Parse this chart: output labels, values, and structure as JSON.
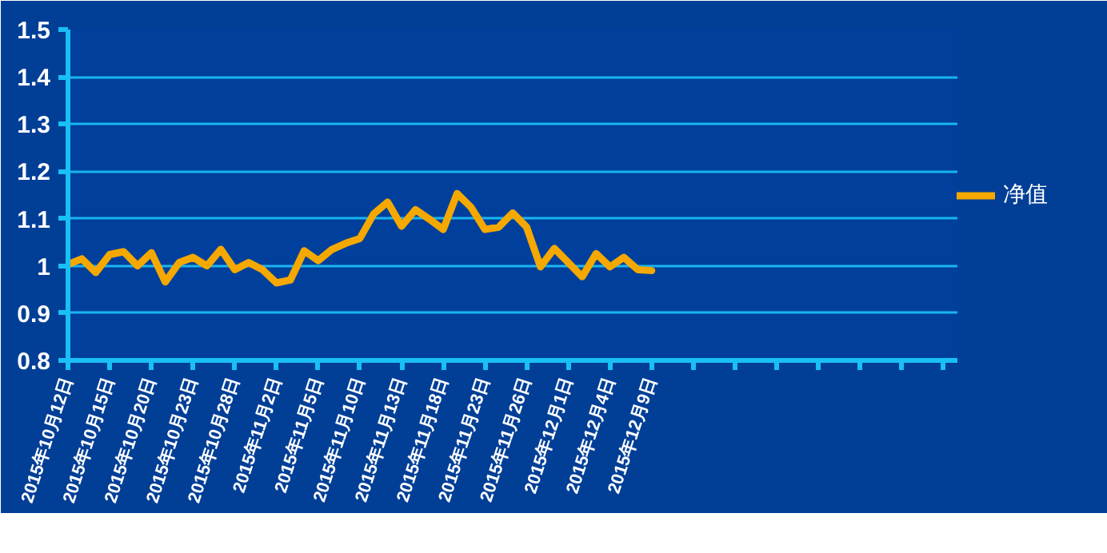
{
  "chart_data": {
    "type": "line",
    "categories": [
      "2015年10月12日",
      null,
      null,
      "2015年10月15日",
      null,
      null,
      "2015年10月20日",
      null,
      null,
      "2015年10月23日",
      null,
      null,
      "2015年10月28日",
      null,
      null,
      "2015年11月2日",
      null,
      null,
      "2015年11月5日",
      null,
      null,
      "2015年11月10日",
      null,
      null,
      "2015年11月13日",
      null,
      null,
      "2015年11月18日",
      null,
      null,
      "2015年11月23日",
      null,
      null,
      "2015年11月26日",
      null,
      null,
      "2015年12月1日",
      null,
      null,
      "2015年12月4日",
      null,
      null,
      "2015年12月9日",
      null,
      null,
      null,
      null,
      null,
      null,
      null,
      null,
      null,
      null,
      null,
      null,
      null,
      null,
      null,
      null,
      null,
      null,
      null,
      null,
      null,
      null
    ],
    "series": [
      {
        "name": "净值",
        "color": "#f5a800",
        "values": [
          1.003,
          1.015,
          0.986,
          1.024,
          1.03,
          1.0,
          1.028,
          0.966,
          1.007,
          1.018,
          1.0,
          1.035,
          0.992,
          1.007,
          0.992,
          0.964,
          0.97,
          1.032,
          1.011,
          1.035,
          1.048,
          1.058,
          1.11,
          1.135,
          1.084,
          1.119,
          1.099,
          1.077,
          1.153,
          1.124,
          1.077,
          1.082,
          1.112,
          1.082,
          0.998,
          1.037,
          1.007,
          0.977,
          1.026,
          0.998,
          1.018,
          0.992,
          0.99,
          null,
          null,
          null,
          null,
          null,
          null,
          null,
          null,
          null,
          null,
          null,
          null,
          null,
          null,
          null,
          null,
          null,
          null,
          null,
          null,
          null,
          null
        ]
      }
    ],
    "ylim": [
      0.8,
      1.5
    ],
    "yticks": [
      0.8,
      0.9,
      1,
      1.1,
      1.2,
      1.3,
      1.4,
      1.5
    ],
    "grid": "y",
    "legend": "right",
    "marker": "none",
    "line_style": "solid"
  }
}
